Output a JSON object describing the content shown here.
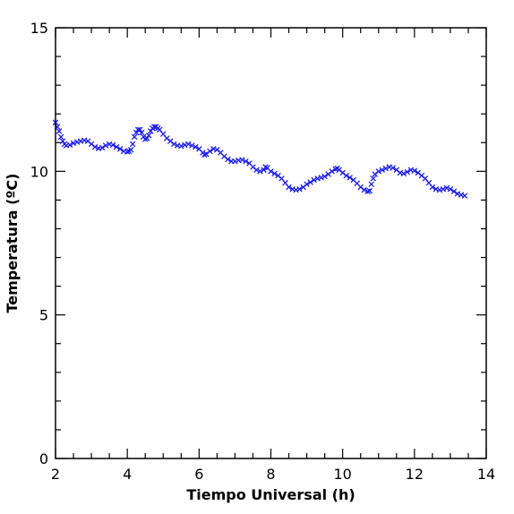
{
  "chart_data": {
    "type": "scatter",
    "xlabel": "Tiempo Universal (h)",
    "ylabel": "Temperatura (ºC)",
    "xlim": [
      2,
      14
    ],
    "ylim": [
      0,
      15
    ],
    "x_ticks": [
      "2",
      "4",
      "6",
      "8",
      "10",
      "12",
      "14"
    ],
    "y_ticks": [
      "0",
      "5",
      "10",
      "15"
    ],
    "marker": "x",
    "color": "#1a1aff",
    "series": [
      {
        "points": [
          [
            2.0,
            11.7
          ],
          [
            2.05,
            11.55
          ],
          [
            2.1,
            11.4
          ],
          [
            2.15,
            11.2
          ],
          [
            2.2,
            11.05
          ],
          [
            2.25,
            10.95
          ],
          [
            2.3,
            10.9
          ],
          [
            2.4,
            10.92
          ],
          [
            2.5,
            10.98
          ],
          [
            2.6,
            11.02
          ],
          [
            2.7,
            11.05
          ],
          [
            2.8,
            11.08
          ],
          [
            2.9,
            11.05
          ],
          [
            3.0,
            10.95
          ],
          [
            3.1,
            10.85
          ],
          [
            3.2,
            10.8
          ],
          [
            3.3,
            10.82
          ],
          [
            3.4,
            10.9
          ],
          [
            3.5,
            10.95
          ],
          [
            3.6,
            10.92
          ],
          [
            3.7,
            10.85
          ],
          [
            3.8,
            10.78
          ],
          [
            3.9,
            10.7
          ],
          [
            4.0,
            10.68
          ],
          [
            4.05,
            10.7
          ],
          [
            4.1,
            10.75
          ],
          [
            4.15,
            10.95
          ],
          [
            4.2,
            11.2
          ],
          [
            4.25,
            11.35
          ],
          [
            4.3,
            11.45
          ],
          [
            4.35,
            11.45
          ],
          [
            4.4,
            11.35
          ],
          [
            4.45,
            11.2
          ],
          [
            4.5,
            11.12
          ],
          [
            4.55,
            11.15
          ],
          [
            4.6,
            11.25
          ],
          [
            4.65,
            11.4
          ],
          [
            4.7,
            11.5
          ],
          [
            4.75,
            11.55
          ],
          [
            4.8,
            11.55
          ],
          [
            4.85,
            11.5
          ],
          [
            4.9,
            11.45
          ],
          [
            5.0,
            11.3
          ],
          [
            5.1,
            11.15
          ],
          [
            5.2,
            11.05
          ],
          [
            5.3,
            10.95
          ],
          [
            5.4,
            10.9
          ],
          [
            5.5,
            10.88
          ],
          [
            5.6,
            10.92
          ],
          [
            5.7,
            10.95
          ],
          [
            5.8,
            10.9
          ],
          [
            5.9,
            10.85
          ],
          [
            6.0,
            10.78
          ],
          [
            6.1,
            10.65
          ],
          [
            6.15,
            10.58
          ],
          [
            6.2,
            10.6
          ],
          [
            6.3,
            10.7
          ],
          [
            6.4,
            10.78
          ],
          [
            6.5,
            10.75
          ],
          [
            6.6,
            10.65
          ],
          [
            6.7,
            10.52
          ],
          [
            6.8,
            10.42
          ],
          [
            6.9,
            10.35
          ],
          [
            7.0,
            10.35
          ],
          [
            7.1,
            10.38
          ],
          [
            7.2,
            10.4
          ],
          [
            7.3,
            10.35
          ],
          [
            7.4,
            10.28
          ],
          [
            7.5,
            10.15
          ],
          [
            7.6,
            10.05
          ],
          [
            7.7,
            10.0
          ],
          [
            7.8,
            10.05
          ],
          [
            7.85,
            10.15
          ],
          [
            7.9,
            10.12
          ],
          [
            8.0,
            10.0
          ],
          [
            8.1,
            9.92
          ],
          [
            8.2,
            9.85
          ],
          [
            8.3,
            9.75
          ],
          [
            8.4,
            9.6
          ],
          [
            8.5,
            9.45
          ],
          [
            8.6,
            9.38
          ],
          [
            8.7,
            9.35
          ],
          [
            8.8,
            9.38
          ],
          [
            8.9,
            9.45
          ],
          [
            9.0,
            9.55
          ],
          [
            9.1,
            9.62
          ],
          [
            9.2,
            9.7
          ],
          [
            9.3,
            9.75
          ],
          [
            9.4,
            9.78
          ],
          [
            9.5,
            9.82
          ],
          [
            9.6,
            9.9
          ],
          [
            9.7,
            10.0
          ],
          [
            9.8,
            10.08
          ],
          [
            9.85,
            10.1
          ],
          [
            9.9,
            10.05
          ],
          [
            10.0,
            9.95
          ],
          [
            10.1,
            9.85
          ],
          [
            10.2,
            9.78
          ],
          [
            10.3,
            9.7
          ],
          [
            10.4,
            9.58
          ],
          [
            10.5,
            9.45
          ],
          [
            10.6,
            9.35
          ],
          [
            10.7,
            9.3
          ],
          [
            10.75,
            9.32
          ],
          [
            10.8,
            9.55
          ],
          [
            10.85,
            9.75
          ],
          [
            10.9,
            9.9
          ],
          [
            11.0,
            10.0
          ],
          [
            11.1,
            10.05
          ],
          [
            11.2,
            10.1
          ],
          [
            11.3,
            10.15
          ],
          [
            11.4,
            10.12
          ],
          [
            11.5,
            10.05
          ],
          [
            11.6,
            9.95
          ],
          [
            11.7,
            9.92
          ],
          [
            11.8,
            9.98
          ],
          [
            11.9,
            10.05
          ],
          [
            12.0,
            10.02
          ],
          [
            12.1,
            9.95
          ],
          [
            12.2,
            9.85
          ],
          [
            12.3,
            9.75
          ],
          [
            12.4,
            9.6
          ],
          [
            12.5,
            9.45
          ],
          [
            12.6,
            9.38
          ],
          [
            12.7,
            9.35
          ],
          [
            12.8,
            9.38
          ],
          [
            12.9,
            9.42
          ],
          [
            13.0,
            9.38
          ],
          [
            13.1,
            9.3
          ],
          [
            13.2,
            9.22
          ],
          [
            13.3,
            9.18
          ],
          [
            13.4,
            9.15
          ]
        ]
      }
    ]
  }
}
